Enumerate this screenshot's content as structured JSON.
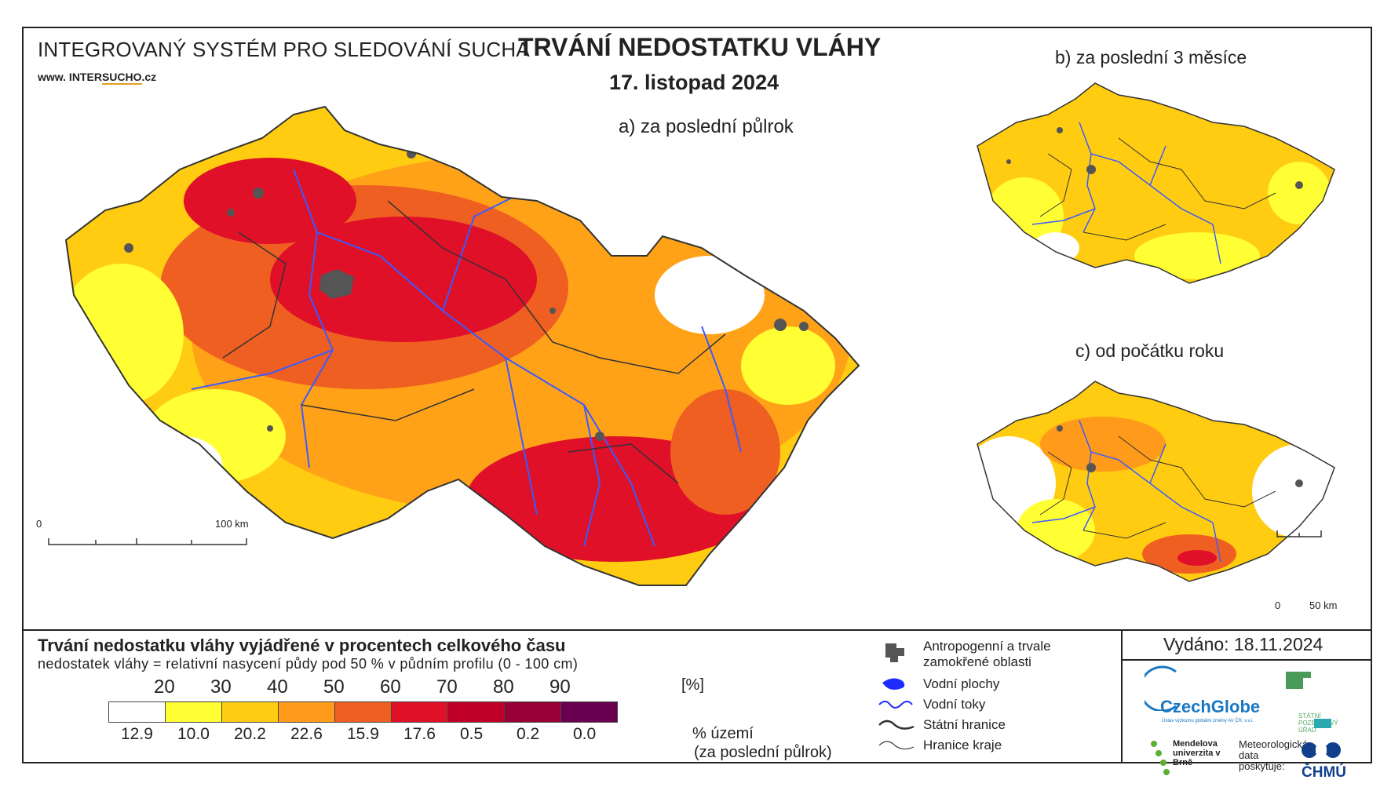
{
  "header": {
    "system_title": "INTEGROVANÝ SYSTÉM PRO SLEDOVÁNÍ SUCHA",
    "website_prefix": "www. INTER",
    "website_mid": "SUCHO",
    "website_suffix": ".cz",
    "main_title": "TRVÁNÍ NEDOSTATKU VLÁHY",
    "date": "17. listopad 2024"
  },
  "panels": {
    "a": {
      "label": "a) za poslední půlrok",
      "scale_start": "0",
      "scale_end": "100 km"
    },
    "b": {
      "label": "b) za poslední 3 měsíce"
    },
    "c": {
      "label": "c) od počátku roku",
      "scale_start": "0",
      "scale_end": "50 km"
    }
  },
  "legend": {
    "title": "Trvání nedostatku vláhy vyjádřené v procentech celkového času",
    "subtitle": "nedostatek vláhy = relativní nasycení půdy pod 50 % v půdním profilu (0 - 100 cm)",
    "thresholds": [
      "20",
      "30",
      "40",
      "50",
      "60",
      "70",
      "80",
      "90"
    ],
    "unit": "[%]",
    "colors": [
      "#ffffff",
      "#ffff33",
      "#ffcc11",
      "#ff9a1a",
      "#ef5f22",
      "#e01028",
      "#c00028",
      "#9a0038",
      "#6a0050"
    ],
    "area_values": [
      "12.9",
      "10.0",
      "20.2",
      "22.6",
      "15.9",
      "17.6",
      "0.5",
      "0.2",
      "0.0"
    ],
    "area_label_1": "% území",
    "area_label_2": "(za poslední půlrok)"
  },
  "symbols": {
    "urban": "Antropogenní a trvale",
    "urban2": "zamokřené oblasti",
    "water_bodies": "Vodní plochy",
    "rivers": "Vodní toky",
    "state_border": "Státní hranice",
    "region_border": "Hranice kraje"
  },
  "issued": "Vydáno: 18.11.2024",
  "credits": {
    "czechglobe": "CzechGlobe",
    "czechglobe_sub": "Ústav výzkumu globální změny AV ČR, v.v.i.",
    "spu": "STÁTNÍ POZEMKOVÝ ÚŘAD",
    "mendel": "Mendelova univerzita v Brně",
    "meteo": "Meteorologická data poskytuje:",
    "chmu": "ČHMÚ"
  }
}
